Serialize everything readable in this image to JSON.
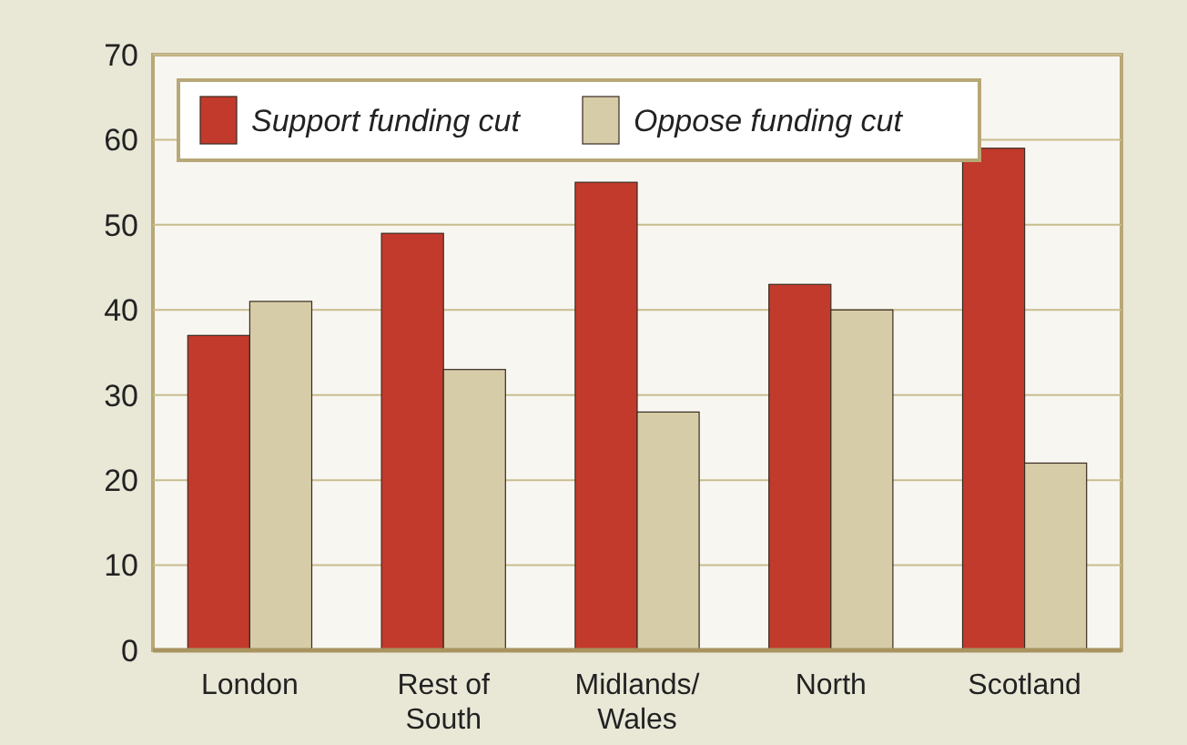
{
  "chart_data": {
    "type": "bar",
    "categories": [
      "London",
      "Rest of\nSouth",
      "Midlands/\nWales",
      "North",
      "Scotland"
    ],
    "series": [
      {
        "name": "Support funding cut",
        "color": "#c23a2c",
        "values": [
          37,
          49,
          55,
          43,
          59
        ]
      },
      {
        "name": "Oppose funding cut",
        "color": "#d6cca8",
        "values": [
          41,
          33,
          28,
          40,
          22
        ]
      }
    ],
    "ylim": [
      0,
      70
    ],
    "yticks": [
      0,
      10,
      20,
      30,
      40,
      50,
      60,
      70
    ],
    "grid": "y",
    "legend": "top left"
  }
}
